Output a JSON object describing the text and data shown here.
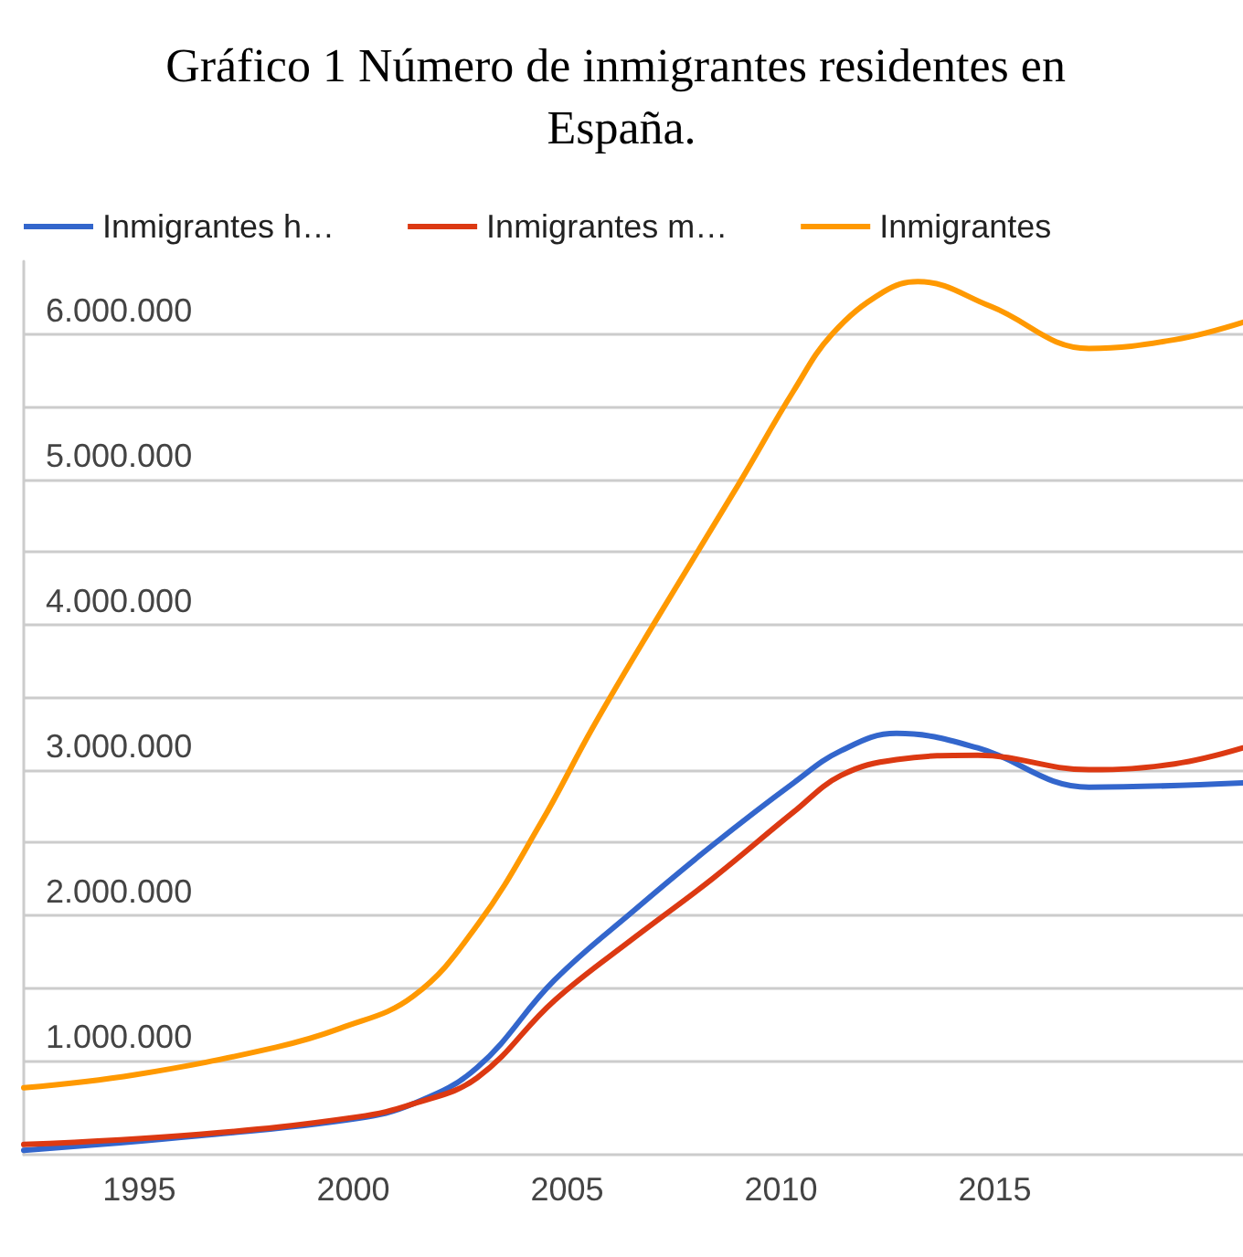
{
  "chart_data": {
    "type": "line",
    "title": "Gráfico 1 Número de inmigrantes residentes en España.",
    "xlim": [
      1992.3,
      2020.8
    ],
    "xticks": [
      1995,
      2000,
      2005,
      2010,
      2015
    ],
    "ylim": [
      350000,
      6500000
    ],
    "yticks": [
      {
        "value": 1000000,
        "label": "1.000.000"
      },
      {
        "value": 1500000,
        "label": null
      },
      {
        "value": 2000000,
        "label": "2.000.000"
      },
      {
        "value": 2500000,
        "label": null
      },
      {
        "value": 3000000,
        "label": "3.000.000"
      },
      {
        "value": 3500000,
        "label": null
      },
      {
        "value": 4000000,
        "label": "4.000.000"
      },
      {
        "value": 4500000,
        "label": null
      },
      {
        "value": 5000000,
        "label": "5.000.000"
      },
      {
        "value": 5500000,
        "label": null
      },
      {
        "value": 6000000,
        "label": "6.000.000"
      }
    ],
    "grid": "y",
    "legend": "top left",
    "marker": "none",
    "line_style": "solid",
    "series": [
      {
        "name": "Inmigrantes h…",
        "color": "#3366cc",
        "x": [
          1992.3,
          1996.4,
          2000.1,
          2001.4,
          2002.9,
          2004.7,
          2006.6,
          2008.4,
          2010.3,
          2011.4,
          2012.7,
          2014.6,
          2017.2,
          2020.8
        ],
        "values": [
          380000,
          480000,
          600000,
          700000,
          950000,
          1550000,
          2040000,
          2480000,
          2910000,
          3130000,
          3250000,
          3150000,
          2880000,
          2910000
        ]
      },
      {
        "name": "Inmigrantes m…",
        "color": "#dc3912",
        "x": [
          1992.3,
          1996.4,
          2000.1,
          2001.4,
          2002.9,
          2004.7,
          2006.6,
          2008.4,
          2010.3,
          2011.4,
          2012.7,
          2014.6,
          2017.2,
          2019.2,
          2020.8
        ],
        "values": [
          420000,
          490000,
          610000,
          700000,
          880000,
          1410000,
          1850000,
          2250000,
          2710000,
          2960000,
          3070000,
          3100000,
          3000000,
          3040000,
          3150000
        ]
      },
      {
        "name": "Inmigrantes",
        "color": "#ff9900",
        "x": [
          1992.3,
          1994.9,
          1998.2,
          1999.7,
          2001.4,
          2002.9,
          2004.4,
          2005.6,
          2007.0,
          2009.0,
          2010.3,
          2011.2,
          2012.4,
          2013.2,
          2014.9,
          2017.2,
          2019.2,
          2020.8
        ],
        "values": [
          810000,
          900000,
          1090000,
          1220000,
          1440000,
          1930000,
          2640000,
          3290000,
          3990000,
          4960000,
          5610000,
          6000000,
          6290000,
          6360000,
          6190000,
          5900000,
          5960000,
          6080000
        ]
      }
    ]
  }
}
